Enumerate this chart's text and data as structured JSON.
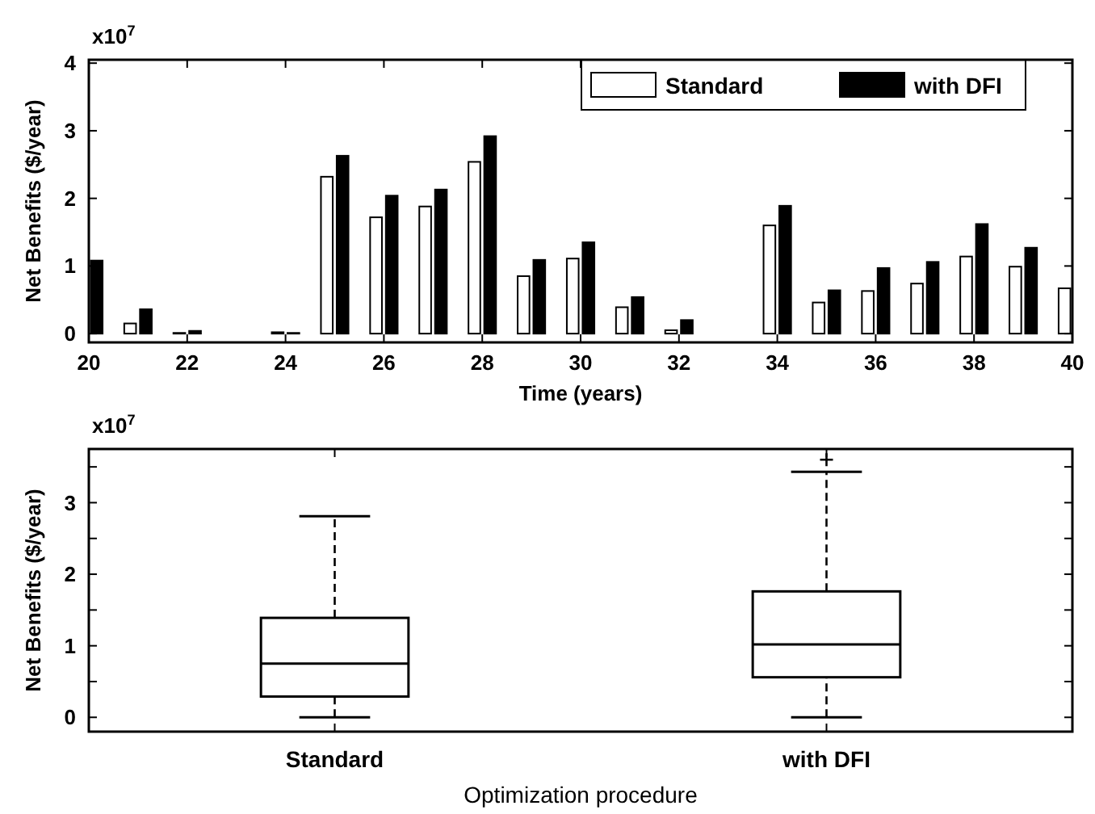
{
  "chart_data": [
    {
      "type": "bar",
      "xlabel": "Time (years)",
      "ylabel": "Net Benefits ($/year)",
      "annotations": [
        "x10$^{7}$"
      ],
      "x": [
        20,
        21,
        22,
        23,
        24,
        25,
        26,
        27,
        28,
        29,
        30,
        31,
        32,
        33,
        34,
        35,
        36,
        37,
        38,
        39,
        40
      ],
      "series": [
        {
          "name": "Standard",
          "color": "#ffffff",
          "values": [
            0,
            0.15,
            0.01,
            0,
            0.02,
            2.32,
            1.72,
            1.88,
            2.54,
            0.85,
            1.11,
            0.39,
            0.05,
            0,
            1.6,
            0.46,
            0.63,
            0.74,
            1.14,
            0.99,
            0.67
          ]
        },
        {
          "name": "with DFI",
          "color": "#000000",
          "values": [
            1.08,
            0.36,
            0.04,
            0,
            0.01,
            2.63,
            2.04,
            2.13,
            2.92,
            1.09,
            1.35,
            0.54,
            0.2,
            0,
            1.89,
            0.64,
            0.97,
            1.06,
            1.62,
            1.27,
            null
          ]
        }
      ],
      "xlim": [
        20,
        40
      ],
      "xticks": [
        20,
        22,
        24,
        26,
        28,
        30,
        32,
        34,
        36,
        38,
        40
      ],
      "ylim": [
        -0.13,
        4.05
      ],
      "yticks": [
        0,
        1,
        2,
        3,
        4
      ],
      "legend": "top right"
    },
    {
      "type": "box",
      "xlabel": "Optimization procedure",
      "ylabel": "Net Benefits ($/year)",
      "annotations": [
        "x10$^{7}$"
      ],
      "categories": [
        "Standard",
        "with DFI"
      ],
      "boxes": [
        {
          "low": 0,
          "q1": 0.29,
          "median": 0.75,
          "q3": 1.39,
          "high": 2.81
        },
        {
          "low": 0,
          "q1": 0.56,
          "median": 1.02,
          "q3": 1.76,
          "high": 3.43,
          "outliers": [
            3.6
          ]
        }
      ],
      "ylim": [
        -0.2,
        3.75
      ],
      "yticks": [
        0,
        {
          "value": 0.5,
          "label": null
        },
        1,
        {
          "value": 1.5,
          "label": null
        },
        2,
        {
          "value": 2.5,
          "label": null
        },
        3,
        {
          "value": 3.5,
          "label": null
        }
      ]
    }
  ]
}
